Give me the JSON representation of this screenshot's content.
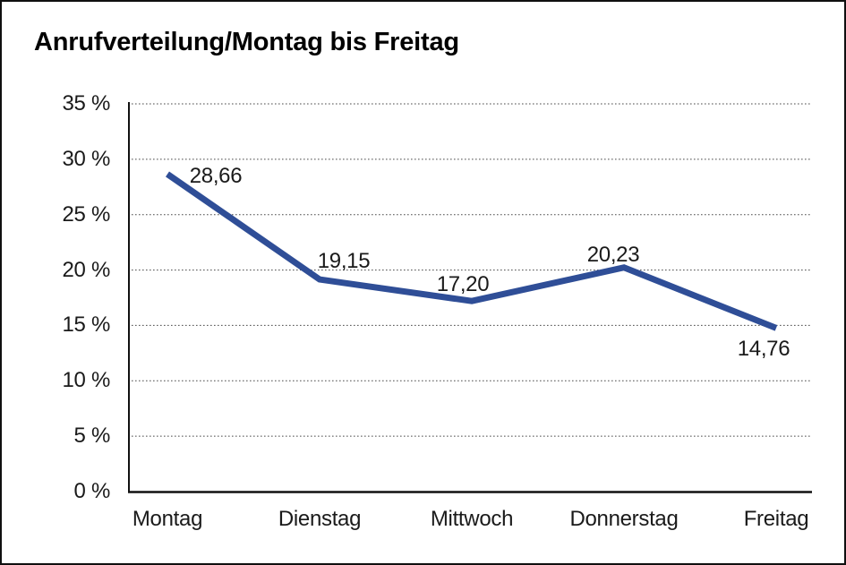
{
  "window": {
    "background": "#ffffff",
    "border_color": "#101010"
  },
  "chart_data": {
    "type": "line",
    "title": "Anrufverteilung/Montag bis Freitag",
    "categories": [
      "Montag",
      "Dienstag",
      "Mittwoch",
      "Donnerstag",
      "Freitag"
    ],
    "values": [
      28.66,
      19.15,
      17.2,
      20.23,
      14.76
    ],
    "value_labels": [
      "28,66",
      "19,15",
      "17,20",
      "20,23",
      "14,76"
    ],
    "ytick_labels": [
      "0 %",
      "5 %",
      "10 %",
      "15 %",
      "20 %",
      "25 %",
      "30 %",
      "35 %"
    ],
    "ytick_step": 5,
    "ylim": [
      0,
      35
    ],
    "xlabel": "",
    "ylabel": "",
    "grid": "horizontal-dotted",
    "legend": "none",
    "line_color": "#2F4E97",
    "grid_color": "#4a4a4a",
    "axis_color": "#111111",
    "text_color": "#1a1a1a"
  }
}
